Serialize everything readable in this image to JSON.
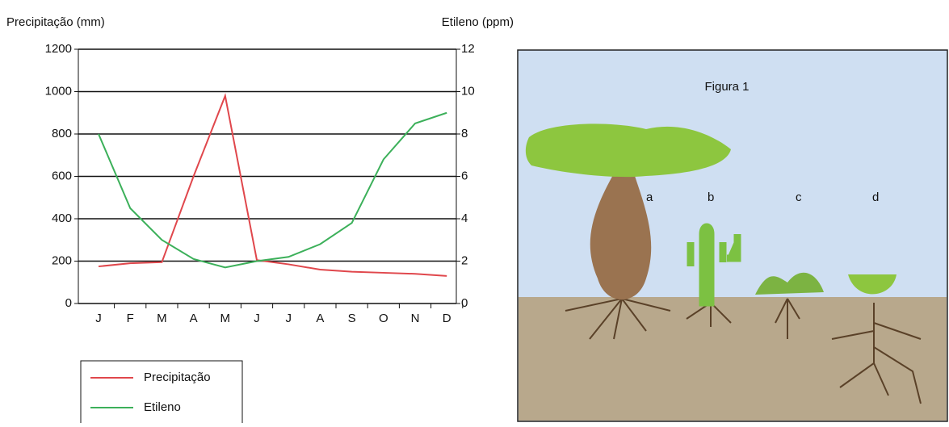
{
  "chart_data": {
    "type": "line",
    "y_label": "Precipitação (mm)",
    "y2_label": "Etileno (ppm)",
    "categories": [
      "J",
      "F",
      "M",
      "A",
      "M",
      "J",
      "J",
      "A",
      "S",
      "O",
      "N",
      "D"
    ],
    "series": [
      {
        "name": "Precipitação",
        "color": "#e0474c",
        "values": [
          175,
          190,
          195,
          600,
          980,
          205,
          185,
          160,
          150,
          145,
          140,
          130
        ]
      },
      {
        "name": "Etileno",
        "color": "#3cb05a",
        "axis": "y2",
        "values": [
          8,
          4.5,
          3,
          2.1,
          1.7,
          2,
          2.2,
          2.8,
          3.8,
          6.8,
          8.5,
          9
        ]
      }
    ],
    "ylim": [
      0,
      1200
    ],
    "yticks": [
      0,
      200,
      400,
      600,
      800,
      1000,
      1200
    ],
    "y2lim": [
      0,
      12
    ],
    "y2ticks": [
      0,
      2,
      4,
      6,
      8,
      10,
      12
    ],
    "grid": true,
    "legend": "below"
  },
  "figure": {
    "caption": "Figura 1",
    "labels": [
      "a",
      "b",
      "c",
      "d"
    ]
  }
}
